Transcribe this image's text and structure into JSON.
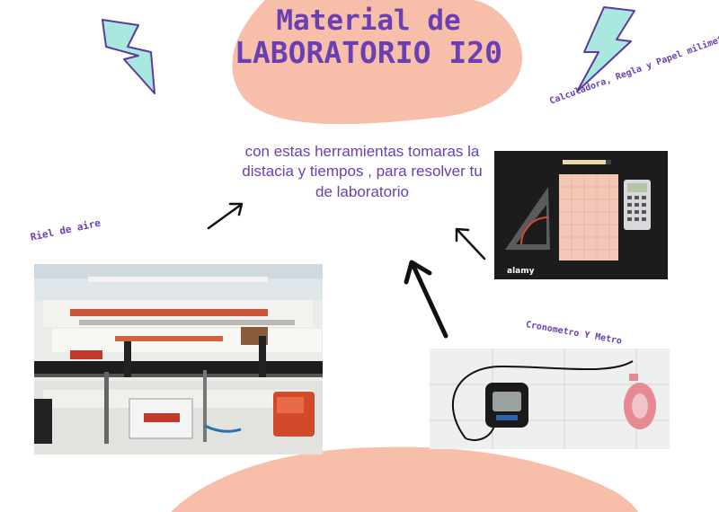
{
  "title": {
    "line1": "Material de",
    "line2": "LABORATORIO I20"
  },
  "description": "con estas herramientas tomaras la distacia   y tiempos , para resolver tu  de laboratorio",
  "labels": {
    "air_track": "Riel de aire",
    "calc": "Calculadora, Regla y Papel milimetrado",
    "chrono": "Cronometro Y Metro"
  },
  "photo_text": {
    "watermark": "alamy"
  },
  "colors": {
    "purple": "#6a3fb3",
    "peach": "#f7bfa9",
    "bolt": "#a8e8df"
  }
}
